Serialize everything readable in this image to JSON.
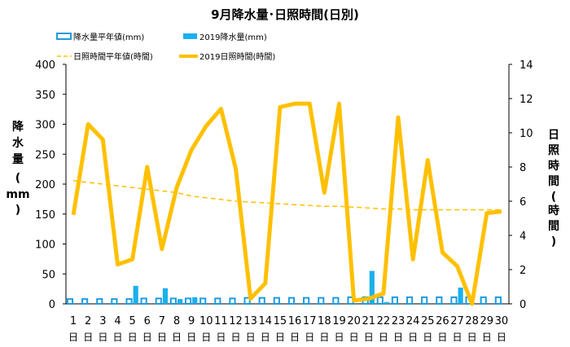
{
  "chart_data": {
    "type": "bar+line",
    "title": "9月降水量･日照時間(日別)",
    "ylabel_left": [
      "降",
      "水",
      "量",
      "(",
      "mm",
      ")"
    ],
    "ylabel_right": [
      "日",
      "照",
      "時",
      "間",
      "(",
      "時",
      "間",
      ")"
    ],
    "ylim_left": [
      0,
      400
    ],
    "yticks_left": [
      0,
      50,
      100,
      150,
      200,
      250,
      300,
      350,
      400
    ],
    "ylim_right": [
      0,
      14
    ],
    "yticks_right": [
      0,
      2,
      4,
      6,
      8,
      10,
      12,
      14
    ],
    "categories": [
      "1",
      "2",
      "3",
      "4",
      "5",
      "6",
      "7",
      "8",
      "9",
      "10",
      "11",
      "12",
      "13",
      "14",
      "15",
      "16",
      "17",
      "18",
      "19",
      "20",
      "21",
      "22",
      "23",
      "24",
      "25",
      "26",
      "27",
      "28",
      "29",
      "30"
    ],
    "x_unit": "日",
    "legend": [
      {
        "label": "降水量平年値(mm)",
        "kind": "bar-outline"
      },
      {
        "label": "2019降水量(mm)",
        "kind": "bar"
      },
      {
        "label": "日照時間平年値(時間)",
        "kind": "line-dashed"
      },
      {
        "label": "2019日照時間(時間)",
        "kind": "line"
      }
    ],
    "series": [
      {
        "name": "降水量平年値(mm)",
        "axis": "left",
        "kind": "bar-outline",
        "values": [
          8,
          8,
          8,
          8,
          8,
          9,
          9,
          9,
          9,
          9,
          9,
          9,
          10,
          10,
          10,
          10,
          10,
          10,
          10,
          11,
          11,
          11,
          11,
          11,
          11,
          11,
          11,
          11,
          11,
          11
        ]
      },
      {
        "name": "2019降水量(mm)",
        "axis": "left",
        "kind": "bar",
        "values": [
          0,
          0,
          0,
          0,
          30,
          0,
          26,
          8,
          11,
          0,
          0,
          0,
          0,
          0,
          0,
          0,
          0,
          0,
          0,
          0,
          55,
          3,
          0,
          0,
          0,
          0,
          27,
          0,
          0,
          0
        ]
      },
      {
        "name": "日照時間平年値(時間)",
        "axis": "right",
        "kind": "line-dashed",
        "values": [
          7.2,
          7.1,
          7.0,
          6.9,
          6.8,
          6.7,
          6.6,
          6.5,
          6.3,
          6.2,
          6.1,
          6.0,
          5.95,
          5.9,
          5.85,
          5.8,
          5.75,
          5.7,
          5.7,
          5.65,
          5.6,
          5.55,
          5.55,
          5.5,
          5.5,
          5.5,
          5.5,
          5.5,
          5.5,
          5.5
        ]
      },
      {
        "name": "2019日照時間(時間)",
        "axis": "right",
        "kind": "line",
        "values": [
          5.2,
          10.5,
          9.6,
          2.3,
          2.6,
          8.0,
          3.2,
          6.8,
          9.0,
          10.4,
          11.4,
          7.9,
          0.3,
          1.2,
          11.5,
          11.7,
          11.7,
          6.5,
          11.7,
          0.2,
          0.3,
          0.6,
          10.9,
          2.6,
          8.4,
          3.0,
          2.2,
          0.0,
          5.3,
          5.4
        ]
      }
    ],
    "colors": {
      "normal_precip": "#1e9de0",
      "precip_2019": "#1ab0ec",
      "normal_sun": "#ffc000",
      "sun_2019": "#ffc000",
      "axis": "#000000"
    },
    "grid": false,
    "legend_position": "top"
  }
}
